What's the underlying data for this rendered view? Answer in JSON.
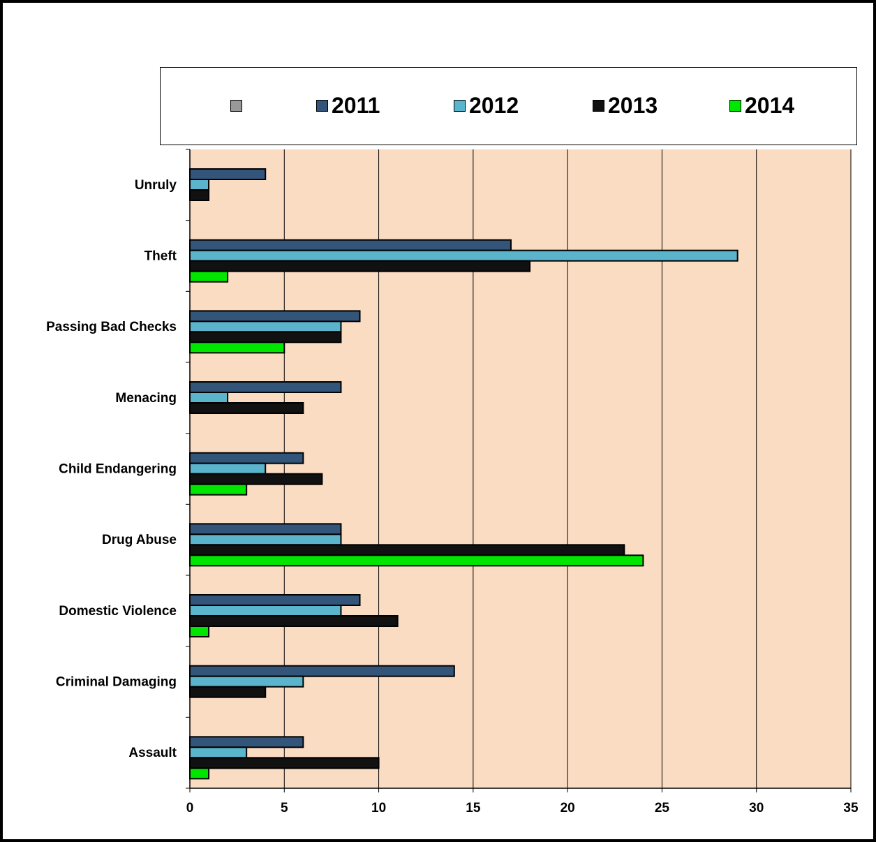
{
  "chart_data": {
    "type": "bar",
    "orientation": "horizontal",
    "title": "",
    "xlabel": "",
    "ylabel": "",
    "categories": [
      "Unruly",
      "Theft",
      "Passing Bad Checks",
      "Menacing",
      "Child Endangering",
      "Drug Abuse",
      "Domestic Violence",
      "Criminal Damaging",
      "Assault"
    ],
    "series": [
      {
        "name": "",
        "color": "#999999",
        "values": [
          0,
          0,
          0,
          0,
          0,
          0,
          0,
          0,
          0
        ]
      },
      {
        "name": "2011",
        "color": "#34557a",
        "values": [
          4,
          17,
          9,
          8,
          6,
          8,
          9,
          14,
          6
        ]
      },
      {
        "name": "2012",
        "color": "#5ab4cc",
        "values": [
          1,
          29,
          8,
          2,
          4,
          8,
          8,
          6,
          3
        ]
      },
      {
        "name": "2013",
        "color": "#111111",
        "values": [
          1,
          18,
          8,
          6,
          7,
          23,
          11,
          4,
          10
        ]
      },
      {
        "name": "2014",
        "color": "#00e600",
        "values": [
          0,
          2,
          5,
          0,
          3,
          24,
          1,
          0,
          1
        ]
      }
    ],
    "xlim": [
      0,
      35
    ],
    "xticks": [
      0,
      5,
      10,
      15,
      20,
      25,
      30,
      35
    ],
    "grid": true,
    "plot_background": "#fadcc3",
    "legend_position": "top"
  }
}
